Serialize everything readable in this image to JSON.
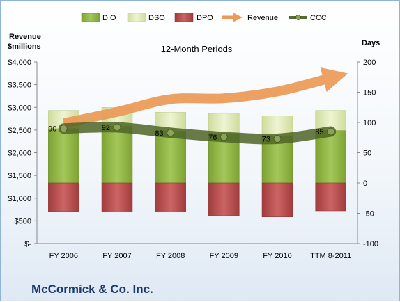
{
  "chart_data": {
    "type": "bar",
    "title": "12-Month Periods",
    "footer": "McCormick & Co. Inc.",
    "left_axis": {
      "title_lines": [
        "Revenue",
        "$millions"
      ],
      "range": [
        0,
        4000
      ],
      "ticks": [
        0,
        500,
        1000,
        1500,
        2000,
        2500,
        3000,
        3500,
        4000
      ],
      "tick_labels": [
        "$-",
        "$500",
        "$1,000",
        "$1,500",
        "$2,000",
        "$2,500",
        "$3,000",
        "$3,500",
        "$4,000"
      ]
    },
    "right_axis": {
      "title": "Days",
      "range": [
        -100,
        200
      ],
      "ticks": [
        -100,
        -50,
        0,
        50,
        100,
        150,
        200
      ],
      "tick_labels": [
        "-100",
        "-50",
        "0",
        "50",
        "100",
        "150",
        "200"
      ]
    },
    "categories": [
      "FY 2006",
      "FY 2007",
      "FY 2008",
      "FY 2009",
      "FY 2010",
      "TTM 8-2011"
    ],
    "series": [
      {
        "name": "DIO",
        "axis": "days",
        "color": "#8fb340",
        "values": [
          90,
          94,
          86,
          82,
          78,
          87
        ]
      },
      {
        "name": "DSO",
        "axis": "days",
        "color": "#dce8b0",
        "values": [
          30,
          31,
          31,
          33,
          33,
          33
        ]
      },
      {
        "name": "DPO",
        "axis": "days",
        "color": "#b34a4a",
        "values": [
          -47,
          -48,
          -48,
          -54,
          -56,
          -46
        ]
      },
      {
        "name": "Revenue",
        "axis": "revenue",
        "color": "#f0a060",
        "values": [
          2650,
          2900,
          3180,
          3200,
          3350,
          3650
        ]
      },
      {
        "name": "CCC",
        "axis": "days",
        "color": "#556b2f",
        "values": [
          90,
          92,
          83,
          76,
          73,
          85
        ]
      }
    ],
    "legend": [
      "DIO",
      "DSO",
      "DPO",
      "Revenue",
      "CCC"
    ],
    "legend_position": "top",
    "grid": false
  }
}
